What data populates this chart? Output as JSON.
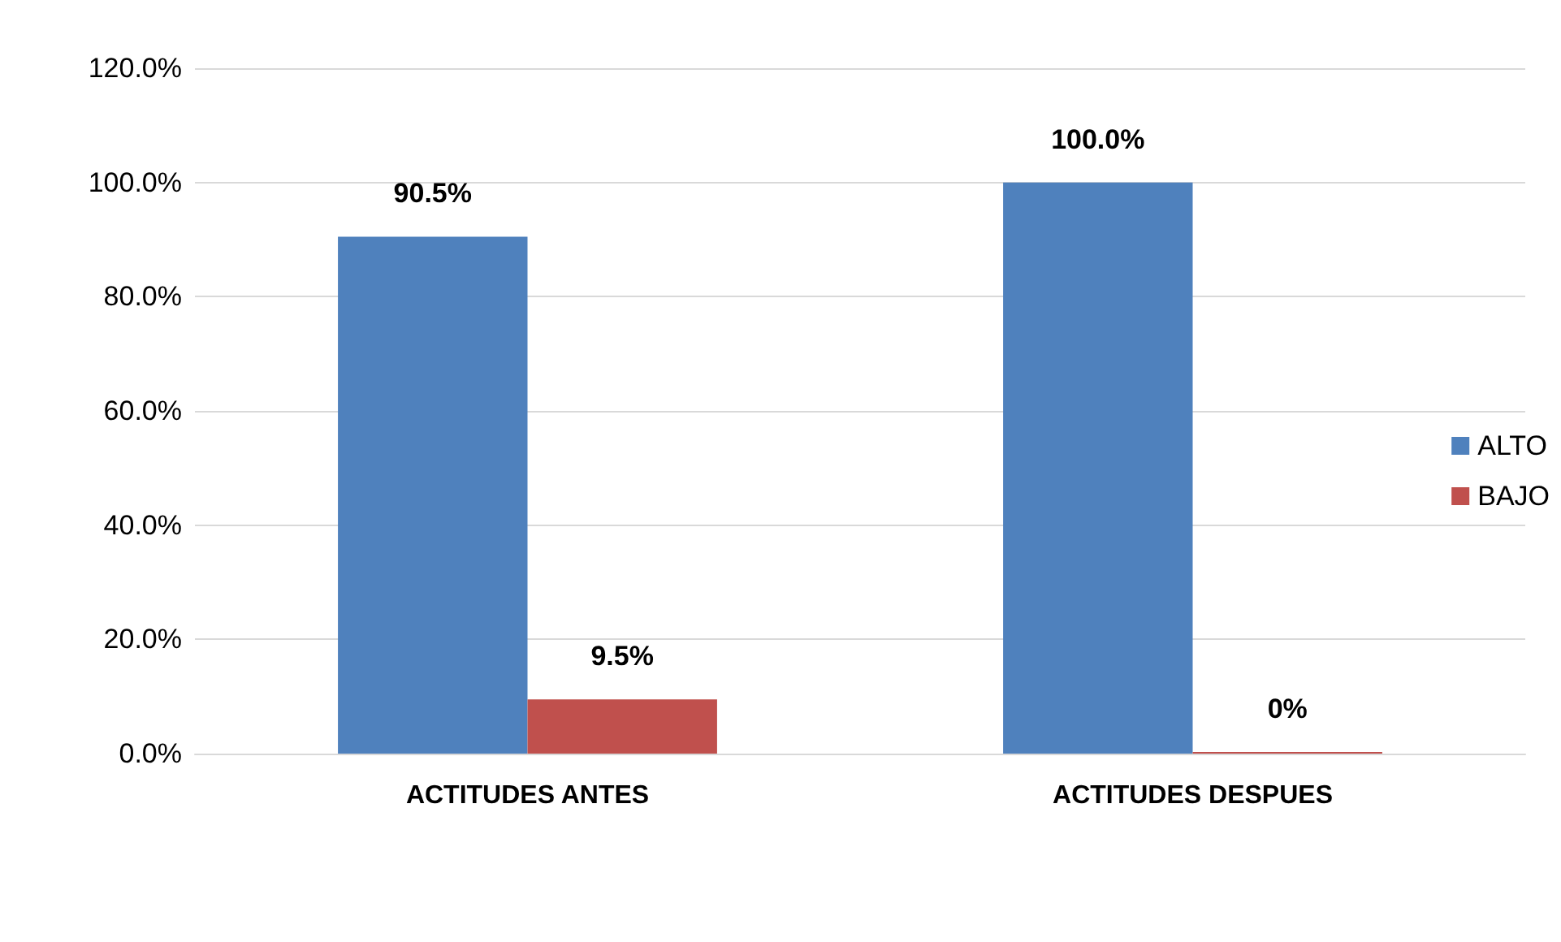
{
  "chart_data": {
    "type": "bar",
    "categories": [
      "ACTITUDES ANTES",
      "ACTITUDES DESPUES"
    ],
    "series": [
      {
        "name": "ALTO",
        "color": "#4f81bd",
        "values": [
          90.5,
          100
        ],
        "value_labels": [
          "90.5%",
          "100.0%"
        ]
      },
      {
        "name": "BAJO",
        "color": "#c0504d",
        "values": [
          9.5,
          0
        ],
        "value_labels": [
          "9.5%",
          "0%"
        ]
      }
    ],
    "ylim": [
      0,
      120
    ],
    "yticks": [
      {
        "value": 0,
        "label": "0.0%"
      },
      {
        "value": 20,
        "label": "20.0%"
      },
      {
        "value": 40,
        "label": "40.0%"
      },
      {
        "value": 60,
        "label": "60.0%"
      },
      {
        "value": 80,
        "label": "80.0%"
      },
      {
        "value": 100,
        "label": "100.0%"
      },
      {
        "value": 120,
        "label": "120.0%"
      }
    ],
    "grid": "y",
    "legend": "right"
  }
}
